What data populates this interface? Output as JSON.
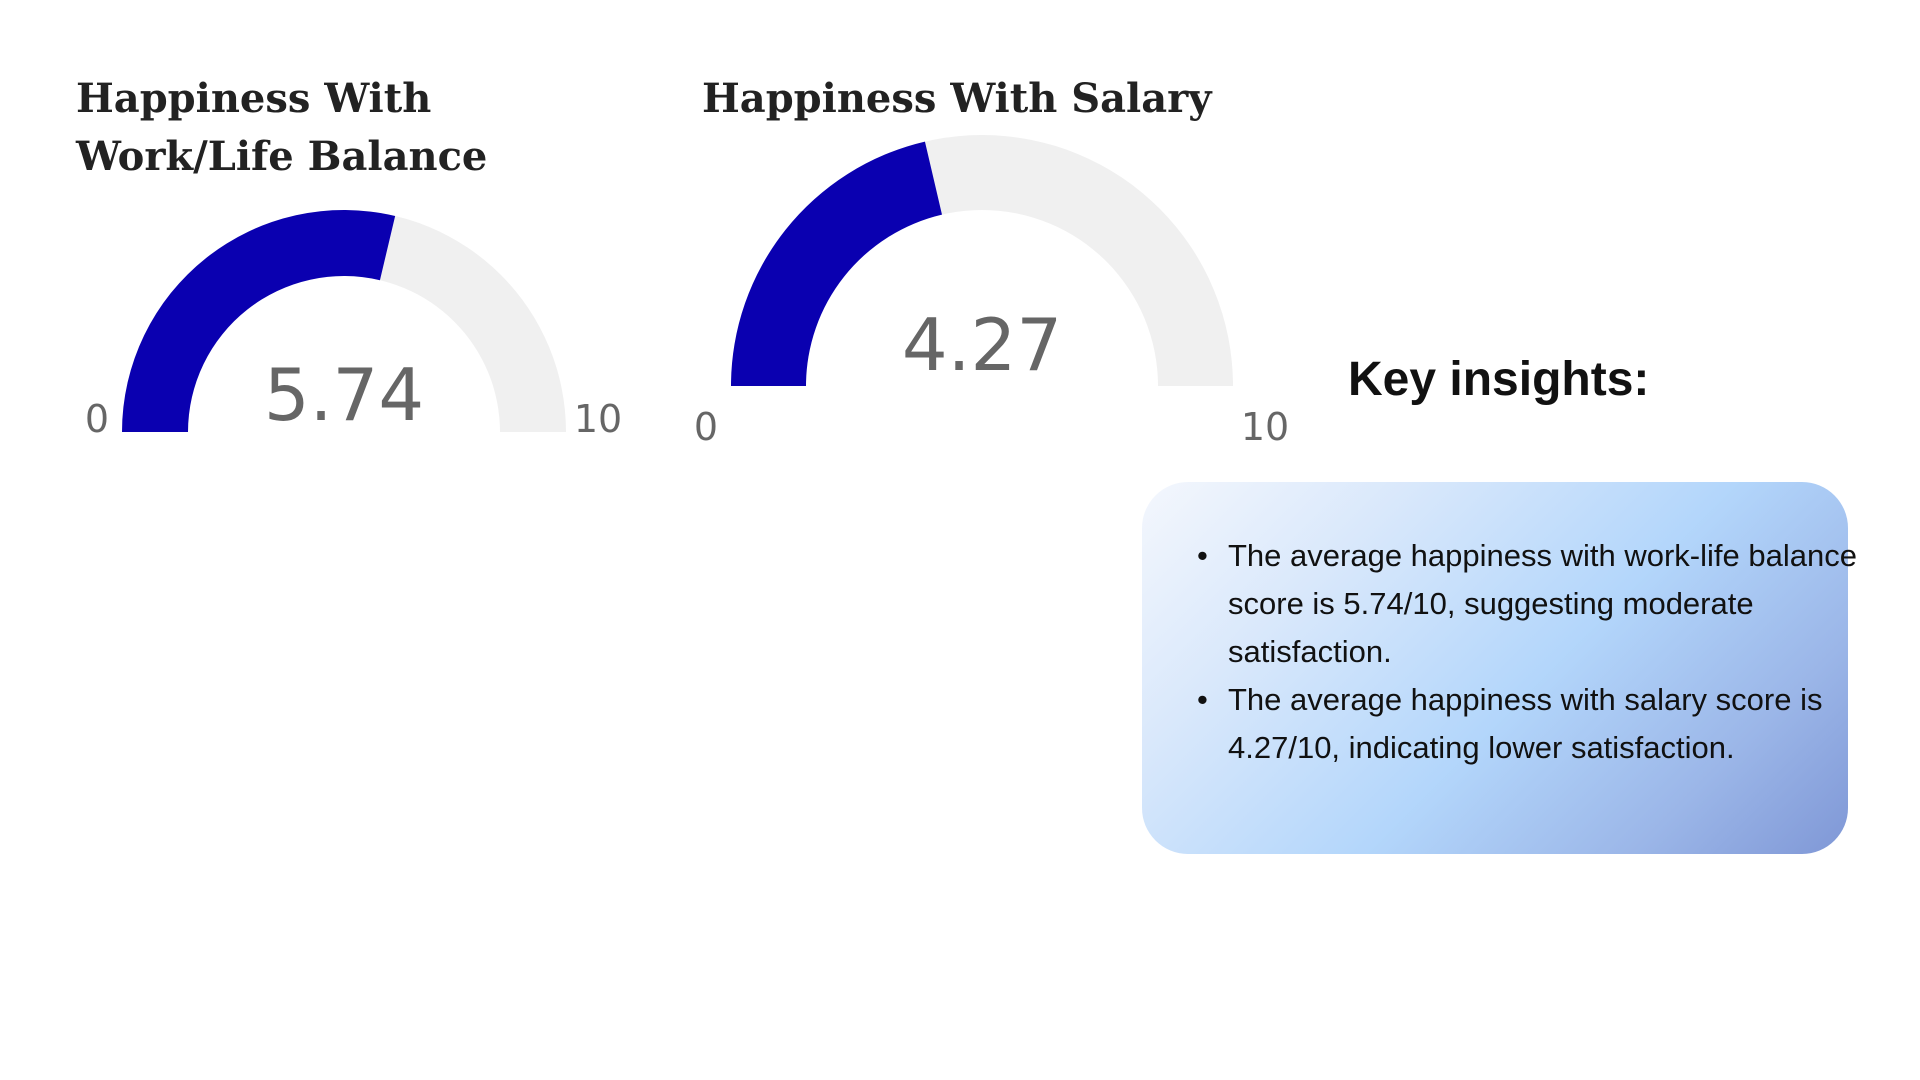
{
  "chart_data": [
    {
      "type": "gauge",
      "title": "Happiness With Work/Life Balance",
      "value": 5.74,
      "value_label": "5.74",
      "min": 0,
      "max": 10,
      "min_label": "0",
      "max_label": "10",
      "fill_color": "#0a00b0",
      "track_color": "#f0f0f0"
    },
    {
      "type": "gauge",
      "title": "Happiness With Salary",
      "value": 4.27,
      "value_label": "4.27",
      "min": 0,
      "max": 10,
      "min_label": "0",
      "max_label": "10",
      "fill_color": "#0a00b0",
      "track_color": "#f0f0f0"
    }
  ],
  "insights": {
    "heading": "Key insights:",
    "items": [
      "The average happiness with work-life balance score is 5.74/10, suggesting moderate satisfaction.",
      "The average happiness with salary score is 4.27/10, indicating lower satisfaction."
    ]
  }
}
